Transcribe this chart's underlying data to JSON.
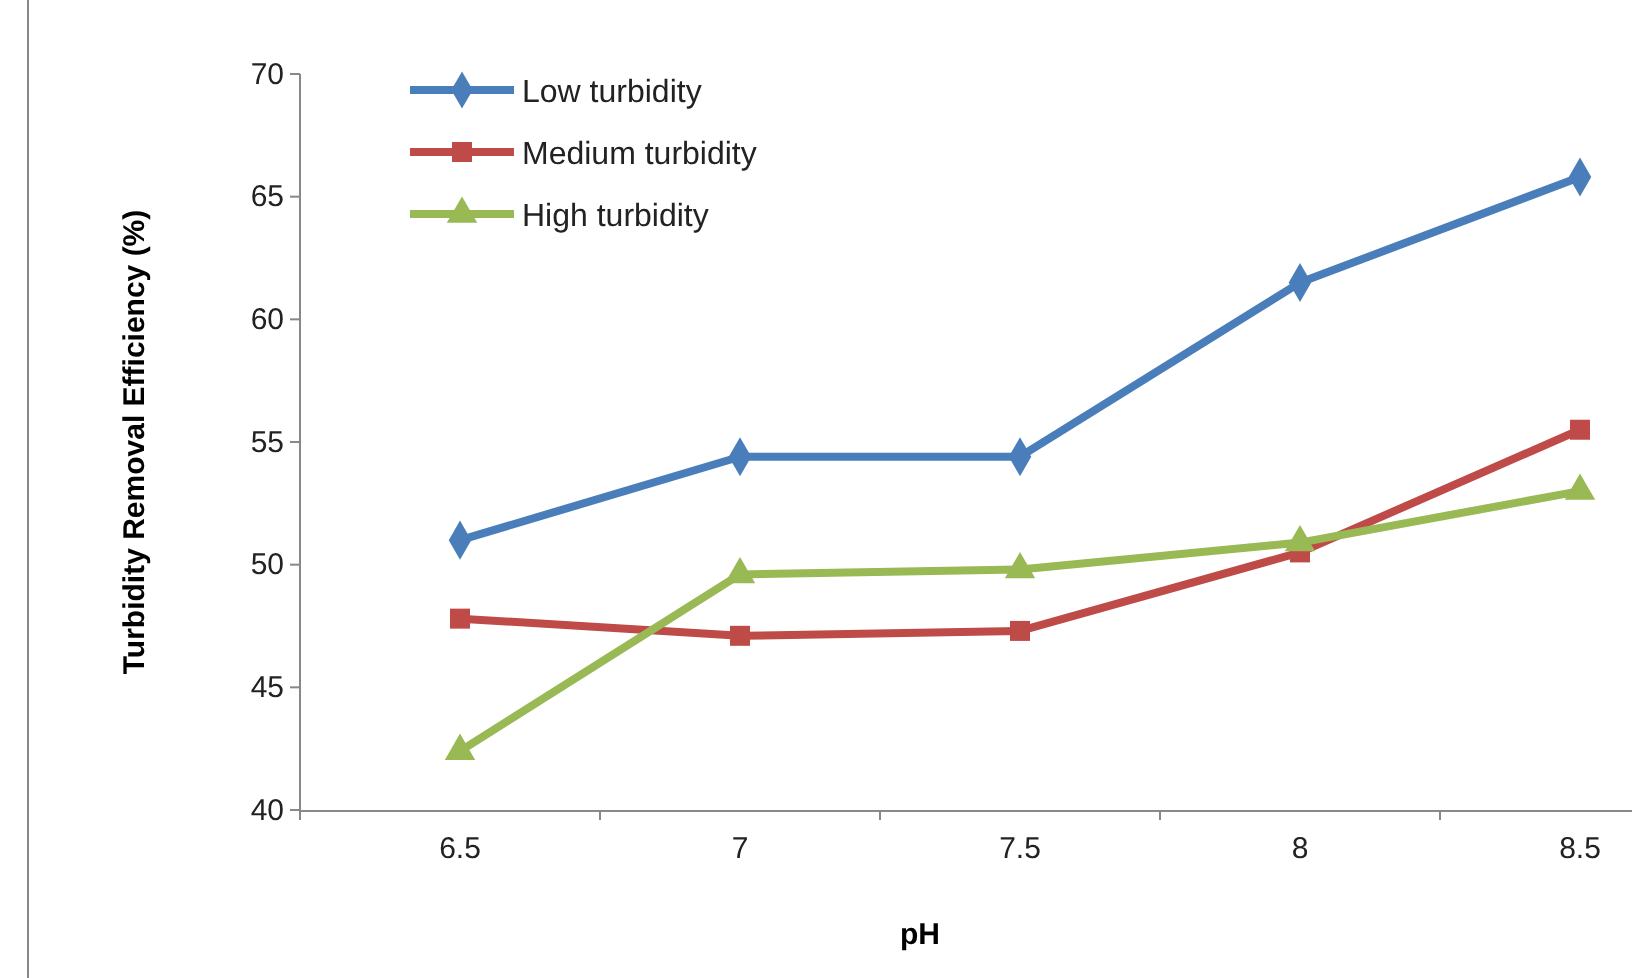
{
  "chart_data": {
    "type": "line",
    "xlabel": "pH",
    "ylabel": "Turbidity Removal  Efficiency  (%)",
    "categories": [
      "6.5",
      "7",
      "7.5",
      "8",
      "8.5"
    ],
    "series": [
      {
        "name": "Low turbidity",
        "color": "#4a7ebb",
        "marker": "diamond",
        "values": [
          51.0,
          54.4,
          54.4,
          61.5,
          65.8
        ]
      },
      {
        "name": "Medium turbidity",
        "color": "#be4b48",
        "marker": "square",
        "values": [
          47.8,
          47.1,
          47.3,
          50.5,
          55.5
        ]
      },
      {
        "name": "High turbidity",
        "color": "#98b954",
        "marker": "triangle",
        "values": [
          42.4,
          49.6,
          49.8,
          50.9,
          53.0
        ]
      }
    ],
    "ylim": [
      40,
      70
    ],
    "yticks": [
      40,
      45,
      50,
      55,
      60,
      65,
      70
    ],
    "grid": false,
    "legend": "top left",
    "line_style": "solid"
  }
}
